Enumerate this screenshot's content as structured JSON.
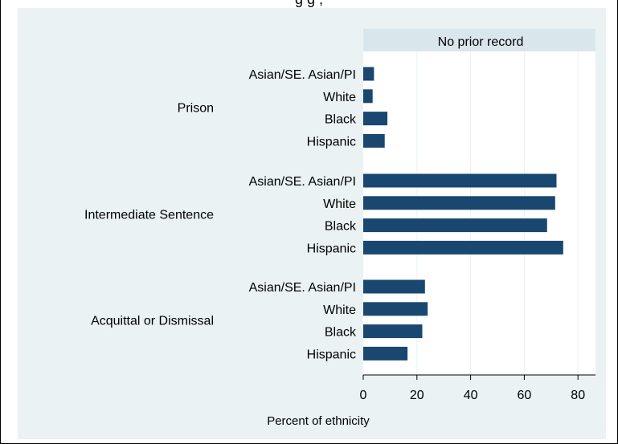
{
  "top_title_fragment": "g                              g                    ,",
  "panel_title": "No prior record",
  "colors": {
    "bar": "#1a476f",
    "panel_background": "#eaf2f3",
    "plot_background": "#ffffff",
    "gridline": "#eaf2f3",
    "panel_header": "#d9e6eb"
  },
  "chart_data": {
    "type": "bar",
    "orientation": "horizontal",
    "groups": [
      {
        "name": "Prison",
        "categories": [
          "Asian/SE. Asian/PI",
          "White",
          "Black",
          "Hispanic"
        ],
        "values": [
          4,
          3.5,
          9,
          8
        ]
      },
      {
        "name": "Intermediate Sentence",
        "categories": [
          "Asian/SE. Asian/PI",
          "White",
          "Black",
          "Hispanic"
        ],
        "values": [
          72,
          71.5,
          68.5,
          74.5
        ]
      },
      {
        "name": "Acquittal or Dismissal",
        "categories": [
          "Asian/SE. Asian/PI",
          "White",
          "Black",
          "Hispanic"
        ],
        "values": [
          23,
          24,
          22,
          16.5
        ]
      }
    ],
    "xlabel": "Percent of ethnicity",
    "xticks": [
      0,
      20,
      40,
      60,
      80
    ],
    "xlim": [
      0,
      86
    ],
    "grid": true,
    "legend": "none"
  }
}
